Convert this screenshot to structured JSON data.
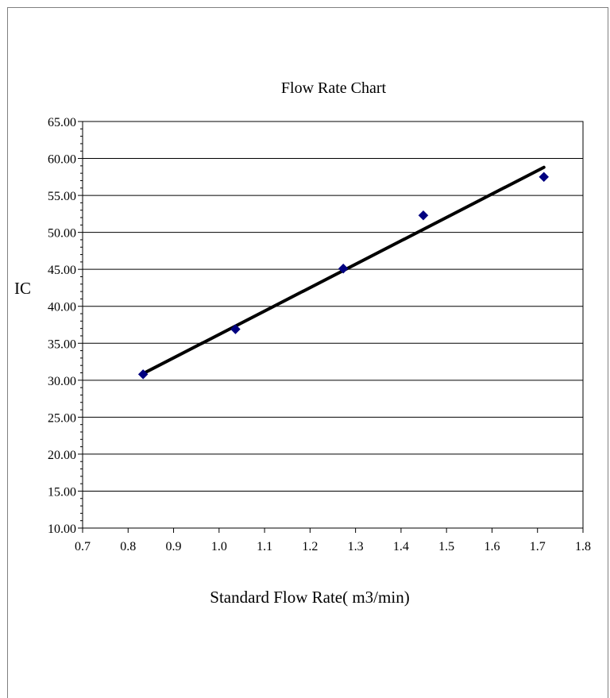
{
  "chart_data": {
    "type": "scatter",
    "title": "Flow Rate Chart",
    "xlabel": "Standard Flow Rate( m3/min)",
    "ylabel": "IC",
    "xlim": [
      0.7,
      1.8
    ],
    "ylim": [
      10,
      65
    ],
    "x_ticks": [
      0.7,
      0.8,
      0.9,
      1.0,
      1.1,
      1.2,
      1.3,
      1.4,
      1.5,
      1.6,
      1.7,
      1.8
    ],
    "x_tick_labels": [
      "0.7",
      "0.8",
      "0.9",
      "1.0",
      "1.1",
      "1.2",
      "1.3",
      "1.4",
      "1.5",
      "1.6",
      "1.7",
      "1.8"
    ],
    "y_ticks": [
      10,
      15,
      20,
      25,
      30,
      35,
      40,
      45,
      50,
      55,
      60,
      65
    ],
    "y_tick_labels": [
      "10.00",
      "15.00",
      "20.00",
      "25.00",
      "30.00",
      "35.00",
      "40.00",
      "45.00",
      "50.00",
      "55.00",
      "60.00",
      "65.00"
    ],
    "grid": "horizontal",
    "legend": "none",
    "series": [
      {
        "type": "scatter",
        "marker": "diamond",
        "color": "#000080",
        "x": [
          0.833,
          1.036,
          1.273,
          1.449,
          1.714
        ],
        "y": [
          30.8,
          36.9,
          45.1,
          52.3,
          57.5
        ]
      },
      {
        "type": "line",
        "color": "#000000",
        "x": [
          0.833,
          1.714
        ],
        "y": [
          30.9,
          58.8
        ]
      }
    ]
  }
}
